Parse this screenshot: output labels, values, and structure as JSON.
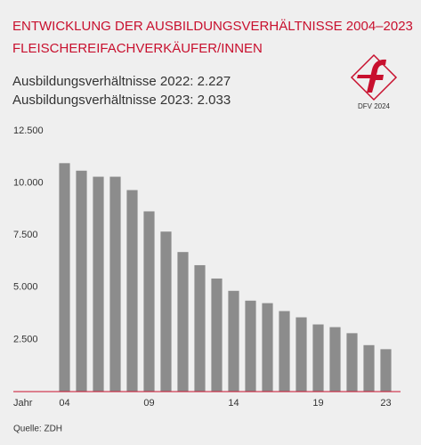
{
  "chart_data": {
    "type": "bar",
    "title": "ENTWICKLUNG DER AUSBILDUNGSVERHÄLTNISSE 2004–2023",
    "subtitle": "FLEISCHEREIFACHVERKÄUFER/INNEN",
    "annotations": [
      "Ausbildungsverhältnisse 2022: 2.227",
      "Ausbildungsverhältnisse 2023: 2.033"
    ],
    "logo_text": "DFV 2024",
    "x_label": "Jahr",
    "source": "Quelle: ZDH",
    "categories": [
      "04",
      null,
      null,
      null,
      null,
      "09",
      null,
      null,
      null,
      null,
      "14",
      null,
      null,
      null,
      null,
      "19",
      null,
      null,
      null,
      "23"
    ],
    "values": [
      10950,
      10590,
      10300,
      10300,
      9660,
      8640,
      7670,
      6690,
      6060,
      5420,
      4830,
      4360,
      4240,
      3860,
      3560,
      3220,
      3090,
      2800,
      2227,
      2033
    ],
    "color": "#8c8c8c",
    "ylim": [
      0,
      12500
    ],
    "yticks": [
      {
        "value": 2500,
        "label": "2.500"
      },
      {
        "value": 5000,
        "label": "5.000"
      },
      {
        "value": 7500,
        "label": "7.500"
      },
      {
        "value": 10000,
        "label": "10.000"
      },
      {
        "value": 12500,
        "label": "12.500"
      }
    ],
    "grid": false
  }
}
